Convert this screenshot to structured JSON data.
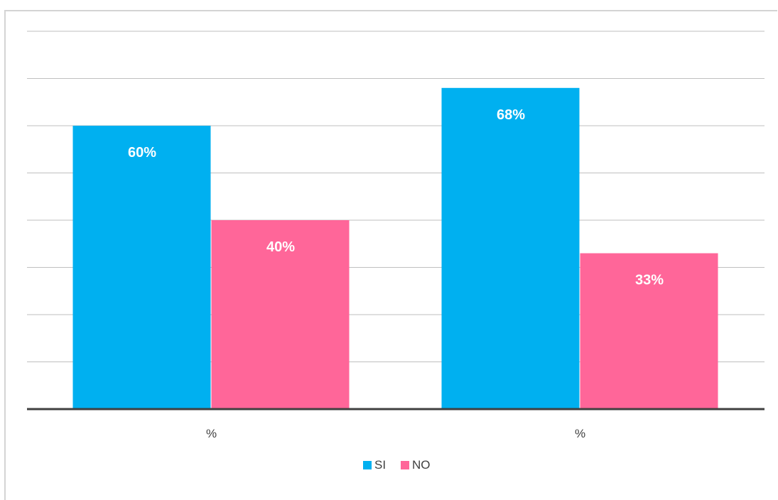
{
  "chart_data": {
    "type": "bar",
    "categories": [
      "%",
      "%"
    ],
    "series": [
      {
        "name": "SI",
        "values": [
          60,
          68
        ],
        "labels": [
          "60%",
          "68%"
        ],
        "color": "#00b0f0"
      },
      {
        "name": "NO",
        "values": [
          40,
          33
        ],
        "labels": [
          "40%",
          "33%"
        ],
        "color": "#ff6699"
      }
    ],
    "ylim": [
      0,
      80
    ],
    "grid": true,
    "legend": "bottom-center",
    "title": "",
    "xlabel": "",
    "ylabel": ""
  }
}
